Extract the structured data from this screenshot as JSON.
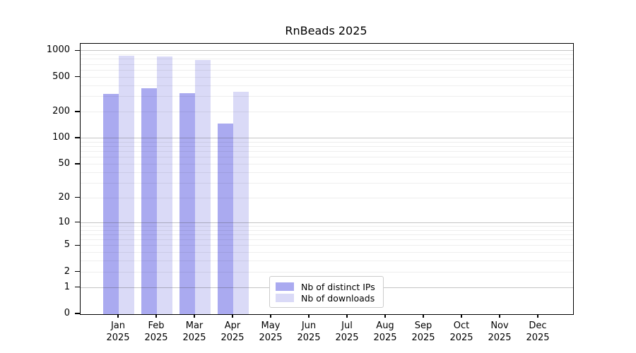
{
  "chart_data": {
    "type": "bar",
    "title": "RnBeads 2025",
    "y_scale": "log10(value+1)",
    "categories": [
      "Jan 2025",
      "Feb 2025",
      "Mar 2025",
      "Apr 2025",
      "May 2025",
      "Jun 2025",
      "Jul 2025",
      "Aug 2025",
      "Sep 2025",
      "Oct 2025",
      "Nov 2025",
      "Dec 2025"
    ],
    "series": [
      {
        "name": "Nb of distinct IPs",
        "color": "#aaaaf0",
        "values": [
          326,
          379,
          330,
          149,
          null,
          null,
          null,
          null,
          null,
          null,
          null,
          null
        ]
      },
      {
        "name": "Nb of downloads",
        "color": "#dadaf7",
        "values": [
          884,
          862,
          786,
          341,
          null,
          null,
          null,
          null,
          null,
          null,
          null,
          null
        ]
      }
    ],
    "yticks": [
      0,
      1,
      2,
      5,
      10,
      20,
      50,
      100,
      200,
      500,
      1000
    ],
    "ylim": [
      0,
      1210
    ],
    "grid": "horizontal, minor lines per log decade",
    "legend_position": "lower center-left inside plot",
    "xlabel": "",
    "ylabel": ""
  }
}
